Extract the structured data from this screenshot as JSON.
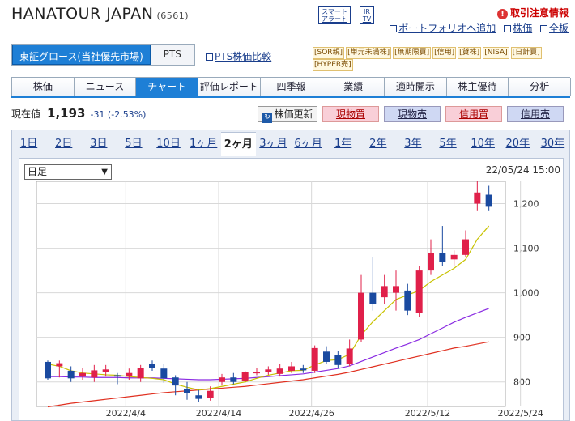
{
  "header": {
    "company": "HANATOUR JAPAN",
    "code": "(6561)",
    "badge_smart": "スマート アラート",
    "badge_ir": "IR TV",
    "alert": "取引注意情報",
    "links": [
      "ポートフォリオへ追加",
      "株価",
      "全板"
    ]
  },
  "market": {
    "selected": "東証グロース(当社優先市場)",
    "pts": "PTS",
    "pts_link": "PTS株価比較"
  },
  "tags": [
    "[SOR親]",
    "[単元未満株]",
    "[無期限買]",
    "[信用]",
    "[貸株]",
    "[NISA]",
    "[日計買]",
    "[HYPER売]"
  ],
  "tabs": [
    "株価",
    "ニュース",
    "チャート",
    "評価レポート",
    "四季報",
    "業績",
    "適時開示",
    "株主優待",
    "分析"
  ],
  "active_tab": "チャート",
  "quote": {
    "label": "現在値",
    "value": "1,193",
    "change": "-31 (-2.53%)"
  },
  "buttons": {
    "update": "株価更新",
    "buy": "現物買",
    "sell": "現物売",
    "margin_buy": "信用買",
    "margin_sell": "信用売"
  },
  "periods": [
    "1日",
    "2日",
    "3日",
    "5日",
    "10日",
    "1ヶ月",
    "2ヶ月",
    "3ヶ月",
    "6ヶ月",
    "1年",
    "2年",
    "3年",
    "5年",
    "10年",
    "20年",
    "30年"
  ],
  "current_period": "2ヶ月",
  "chart_select": "日足",
  "timestamp": "22/05/24 15:00",
  "colors": {
    "up": "#e0204a",
    "down": "#1a4aa0",
    "ma_short": "#c8c200",
    "ma_mid": "#8a2be2",
    "ma_long": "#e03020"
  },
  "chart_data": {
    "type": "candlestick",
    "y_ticks": [
      "1,200",
      "1,100",
      "1,000",
      "900",
      "800"
    ],
    "y_tick_values": [
      1200,
      1100,
      1000,
      900,
      800
    ],
    "ylim": [
      745,
      1250
    ],
    "x_labels": [
      "2022/4/4",
      "2022/4/14",
      "2022/4/26",
      "2022/5/12",
      "2022/5/24"
    ],
    "x_label_index": [
      7,
      15,
      23,
      33,
      41
    ],
    "candles": [
      [
        845,
        808,
        848,
        805
      ],
      [
        835,
        842,
        848,
        810
      ],
      [
        825,
        808,
        835,
        800
      ],
      [
        812,
        820,
        832,
        805
      ],
      [
        810,
        826,
        838,
        800
      ],
      [
        822,
        828,
        838,
        812
      ],
      [
        815,
        812,
        820,
        795
      ],
      [
        812,
        820,
        830,
        805
      ],
      [
        808,
        832,
        838,
        800
      ],
      [
        840,
        832,
        848,
        825
      ],
      [
        830,
        808,
        840,
        798
      ],
      [
        810,
        792,
        815,
        770
      ],
      [
        785,
        775,
        800,
        760
      ],
      [
        770,
        762,
        782,
        755
      ],
      [
        765,
        780,
        790,
        758
      ],
      [
        800,
        810,
        818,
        792
      ],
      [
        810,
        800,
        820,
        795
      ],
      [
        802,
        822,
        825,
        798
      ],
      [
        820,
        822,
        832,
        815
      ],
      [
        822,
        828,
        835,
        816
      ],
      [
        818,
        830,
        840,
        812
      ],
      [
        825,
        835,
        845,
        820
      ],
      [
        830,
        826,
        838,
        820
      ],
      [
        825,
        876,
        882,
        820
      ],
      [
        868,
        845,
        880,
        840
      ],
      [
        860,
        838,
        870,
        830
      ],
      [
        840,
        875,
        895,
        835
      ],
      [
        895,
        1000,
        1040,
        890
      ],
      [
        1000,
        975,
        1080,
        960
      ],
      [
        990,
        1015,
        1040,
        975
      ],
      [
        1000,
        1015,
        1050,
        960
      ],
      [
        1005,
        960,
        1020,
        950
      ],
      [
        955,
        1050,
        1060,
        945
      ],
      [
        1050,
        1090,
        1120,
        1040
      ],
      [
        1090,
        1070,
        1150,
        1060
      ],
      [
        1075,
        1085,
        1095,
        1060
      ],
      [
        1085,
        1120,
        1140,
        1080
      ],
      [
        1200,
        1225,
        1250,
        1185
      ],
      [
        1220,
        1193,
        1240,
        1185
      ]
    ],
    "ma_short": [
      840,
      835,
      825,
      820,
      818,
      816,
      815,
      812,
      810,
      808,
      805,
      795,
      788,
      782,
      785,
      790,
      795,
      800,
      808,
      815,
      820,
      825,
      826,
      838,
      848,
      850,
      862,
      905,
      935,
      960,
      985,
      995,
      1005,
      1025,
      1040,
      1055,
      1075,
      1120,
      1150
    ],
    "ma_mid": [
      812,
      812,
      811,
      811,
      810,
      810,
      810,
      809,
      809,
      809,
      808,
      807,
      806,
      805,
      805,
      806,
      807,
      808,
      810,
      812,
      814,
      816,
      818,
      822,
      826,
      830,
      836,
      846,
      856,
      866,
      876,
      885,
      895,
      908,
      921,
      934,
      945,
      955,
      965
    ],
    "ma_long": [
      744,
      748,
      752,
      755,
      758,
      761,
      764,
      767,
      770,
      773,
      776,
      778,
      780,
      782,
      784,
      786,
      788,
      790,
      793,
      796,
      799,
      802,
      805,
      809,
      813,
      817,
      822,
      828,
      834,
      840,
      846,
      852,
      858,
      864,
      870,
      876,
      880,
      885,
      890
    ]
  }
}
